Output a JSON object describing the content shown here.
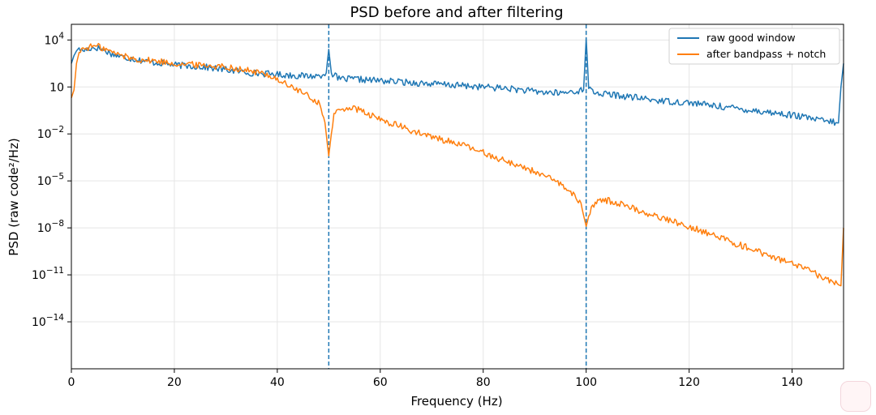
{
  "chart_data": {
    "type": "line",
    "title": "PSD before and after filtering",
    "xlabel": "Frequency (Hz)",
    "ylabel": "PSD (raw code²/Hz)",
    "x_scale": "linear",
    "y_scale": "log",
    "xlim": [
      0,
      150
    ],
    "ylim_log10": [
      -17,
      5
    ],
    "x_ticks": [
      0,
      20,
      40,
      60,
      80,
      100,
      120,
      140
    ],
    "y_ticks": [
      {
        "base": "10",
        "exp": "4",
        "log10": 4
      },
      {
        "base": "10",
        "exp": "",
        "text": "10",
        "exp1": "1",
        "log10": 1
      },
      {
        "base": "10",
        "exp": "−2",
        "log10": -2
      },
      {
        "base": "10",
        "exp": "−5",
        "log10": -5
      },
      {
        "base": "10",
        "exp": "−8",
        "log10": -8
      },
      {
        "base": "10",
        "exp": "−11",
        "log10": -11
      },
      {
        "base": "10",
        "exp": "−14",
        "log10": -14
      }
    ],
    "grid": true,
    "legend_position": "top-right",
    "vlines": [
      50,
      100
    ],
    "series": [
      {
        "name": "raw good window",
        "color": "#1f77b4",
        "log10_y_points": [
          [
            0,
            2.5
          ],
          [
            0.5,
            3.0
          ],
          [
            1,
            3.3
          ],
          [
            1.5,
            3.5
          ],
          [
            2,
            3.3
          ],
          [
            3,
            3.4
          ],
          [
            4,
            3.5
          ],
          [
            5,
            3.5
          ],
          [
            6,
            3.4
          ],
          [
            8,
            3.1
          ],
          [
            10,
            2.9
          ],
          [
            12,
            2.8
          ],
          [
            15,
            2.6
          ],
          [
            18,
            2.5
          ],
          [
            20,
            2.4
          ],
          [
            25,
            2.3
          ],
          [
            30,
            2.1
          ],
          [
            35,
            1.9
          ],
          [
            40,
            1.8
          ],
          [
            45,
            1.7
          ],
          [
            48,
            1.7
          ],
          [
            49.5,
            1.9
          ],
          [
            50,
            3.4
          ],
          [
            50.5,
            1.9
          ],
          [
            52,
            1.5
          ],
          [
            55,
            1.5
          ],
          [
            60,
            1.4
          ],
          [
            65,
            1.3
          ],
          [
            70,
            1.2
          ],
          [
            75,
            1.1
          ],
          [
            80,
            1.0
          ],
          [
            85,
            0.9
          ],
          [
            90,
            0.7
          ],
          [
            95,
            0.6
          ],
          [
            99.5,
            0.8
          ],
          [
            100,
            4.1
          ],
          [
            100.5,
            0.9
          ],
          [
            102,
            0.6
          ],
          [
            105,
            0.5
          ],
          [
            110,
            0.3
          ],
          [
            115,
            0.1
          ],
          [
            120,
            0.0
          ],
          [
            125,
            -0.2
          ],
          [
            130,
            -0.4
          ],
          [
            135,
            -0.6
          ],
          [
            140,
            -0.8
          ],
          [
            145,
            -1.1
          ],
          [
            149,
            -1.3
          ],
          [
            149.5,
            1.0
          ],
          [
            150,
            2.5
          ]
        ]
      },
      {
        "name": "after bandpass + notch",
        "color": "#ff7f0e",
        "log10_y_points": [
          [
            0,
            0.3
          ],
          [
            0.5,
            0.8
          ],
          [
            1,
            2.5
          ],
          [
            1.5,
            3.2
          ],
          [
            2,
            3.4
          ],
          [
            3,
            3.5
          ],
          [
            4,
            3.6
          ],
          [
            5,
            3.6
          ],
          [
            6,
            3.5
          ],
          [
            8,
            3.2
          ],
          [
            10,
            3.0
          ],
          [
            12,
            2.8
          ],
          [
            15,
            2.7
          ],
          [
            18,
            2.6
          ],
          [
            20,
            2.5
          ],
          [
            25,
            2.4
          ],
          [
            30,
            2.3
          ],
          [
            35,
            2.0
          ],
          [
            38,
            1.8
          ],
          [
            40,
            1.5
          ],
          [
            42,
            1.1
          ],
          [
            44,
            0.8
          ],
          [
            46,
            0.4
          ],
          [
            48,
            0.0
          ],
          [
            49,
            -0.8
          ],
          [
            49.5,
            -2.0
          ],
          [
            50,
            -3.4
          ],
          [
            50.5,
            -2.0
          ],
          [
            51,
            -0.8
          ],
          [
            52,
            -0.5
          ],
          [
            54,
            -0.3
          ],
          [
            56,
            -0.5
          ],
          [
            58,
            -0.8
          ],
          [
            60,
            -1.1
          ],
          [
            63,
            -1.4
          ],
          [
            66,
            -1.8
          ],
          [
            70,
            -2.2
          ],
          [
            75,
            -2.6
          ],
          [
            80,
            -3.2
          ],
          [
            85,
            -3.8
          ],
          [
            90,
            -4.4
          ],
          [
            95,
            -5.2
          ],
          [
            97,
            -5.7
          ],
          [
            99,
            -6.5
          ],
          [
            100,
            -7.9
          ],
          [
            101,
            -6.6
          ],
          [
            103,
            -6.2
          ],
          [
            105,
            -6.3
          ],
          [
            108,
            -6.6
          ],
          [
            112,
            -7.1
          ],
          [
            116,
            -7.5
          ],
          [
            120,
            -7.9
          ],
          [
            125,
            -8.5
          ],
          [
            130,
            -9.1
          ],
          [
            135,
            -9.7
          ],
          [
            140,
            -10.3
          ],
          [
            145,
            -11.0
          ],
          [
            148,
            -11.5
          ],
          [
            149.5,
            -11.7
          ],
          [
            150,
            -8.0
          ]
        ]
      }
    ]
  }
}
